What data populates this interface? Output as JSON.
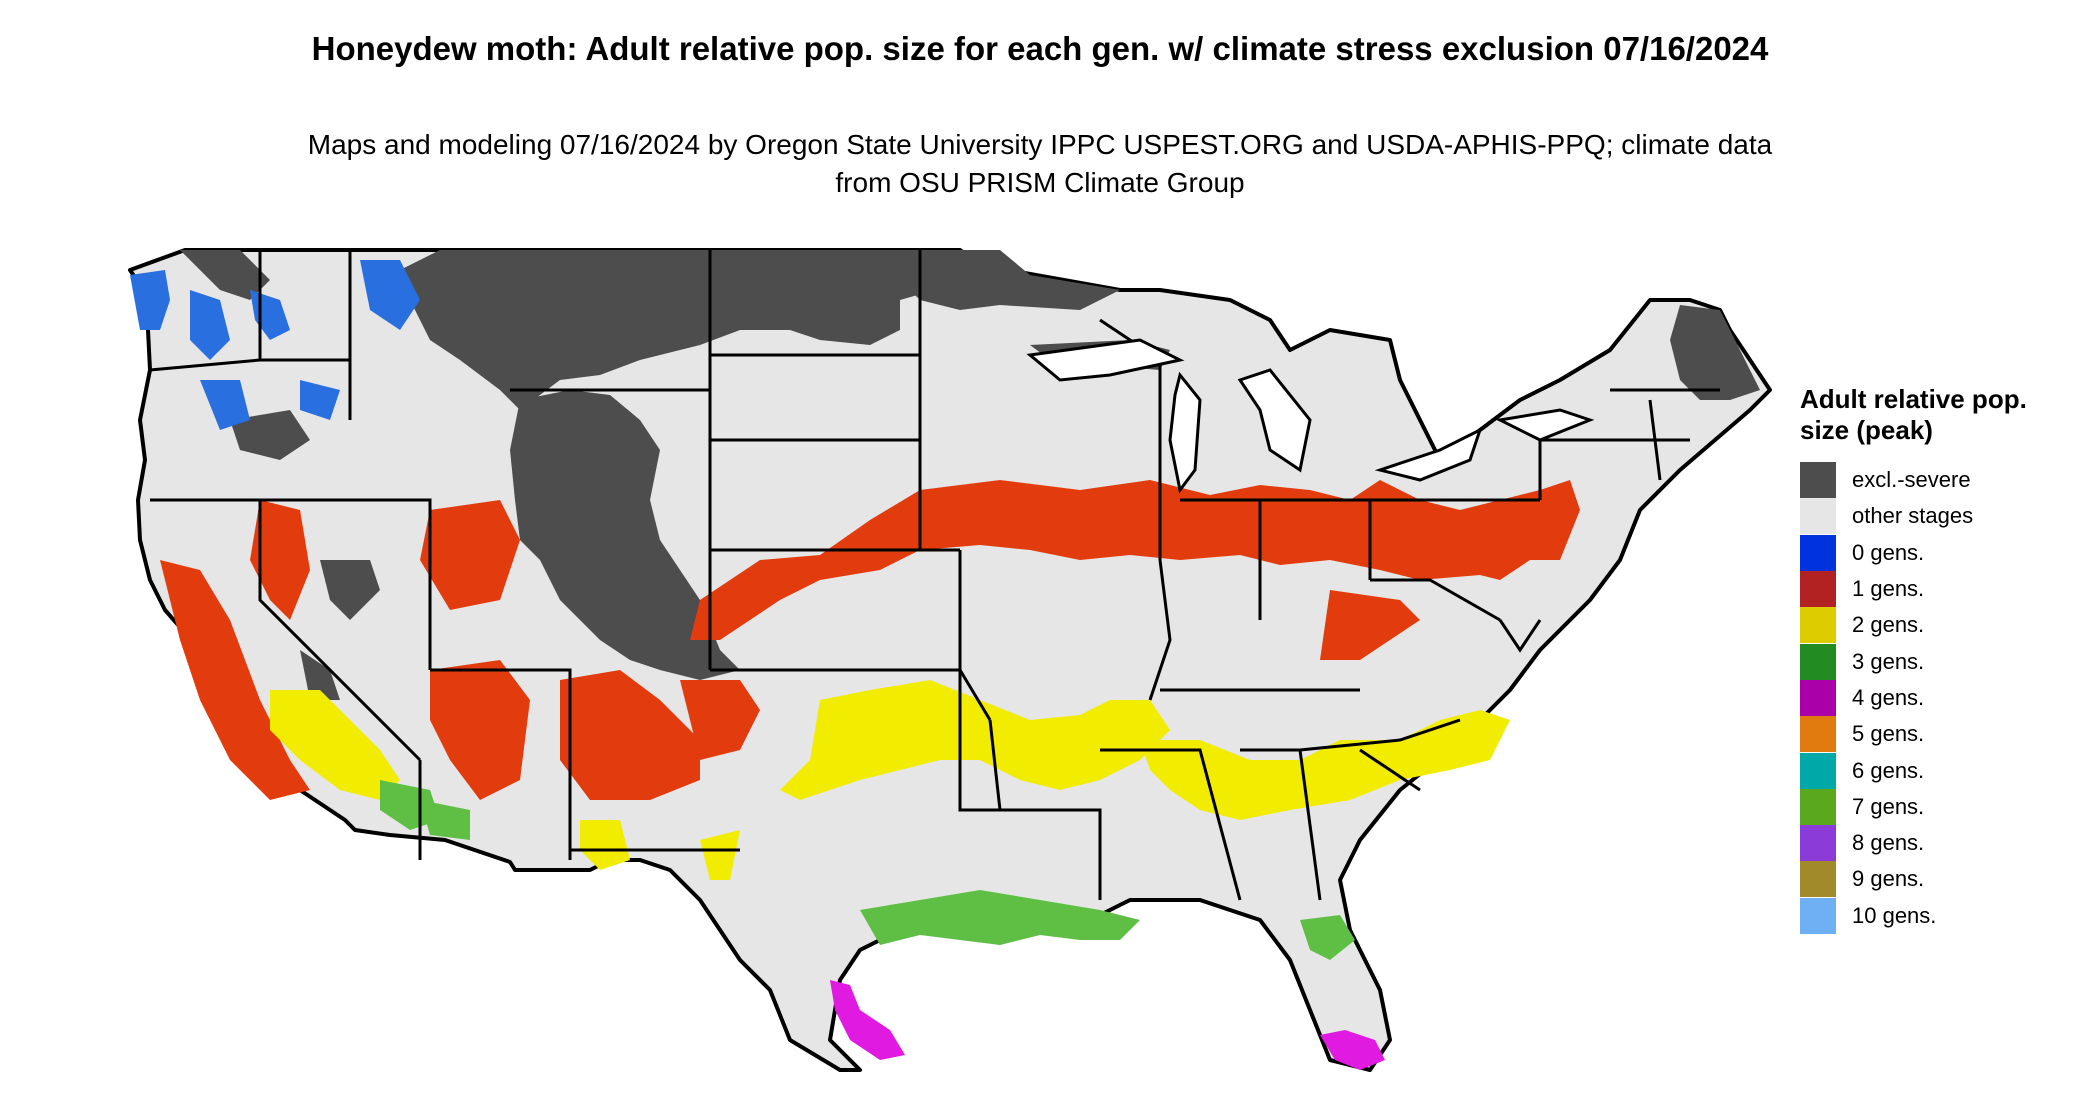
{
  "title": "Honeydew moth: Adult relative pop. size for each gen. w/ climate stress exclusion 07/16/2024",
  "subtitle": "Maps and modeling 07/16/2024 by Oregon State University IPPC USPEST.ORG and USDA-APHIS-PPQ; climate data from OSU PRISM Climate Group",
  "legend": {
    "title": "Adult relative pop. size (peak)",
    "items": [
      {
        "label": "excl.-severe",
        "color": "#4d4d4d"
      },
      {
        "label": "other stages",
        "color": "#e6e6e6"
      },
      {
        "label": "0 gens.",
        "color": "#0033dd"
      },
      {
        "label": "1 gens.",
        "color": "#b22222"
      },
      {
        "label": "2 gens.",
        "color": "#ddcc00"
      },
      {
        "label": "3 gens.",
        "color": "#228b22"
      },
      {
        "label": "4 gens.",
        "color": "#aa00aa"
      },
      {
        "label": "5 gens.",
        "color": "#e07b10"
      },
      {
        "label": "6 gens.",
        "color": "#00a8a8"
      },
      {
        "label": "7 gens.",
        "color": "#5aa81e"
      },
      {
        "label": "8 gens.",
        "color": "#8a3bd8"
      },
      {
        "label": "9 gens.",
        "color": "#a08a2a"
      },
      {
        "label": "10 gens.",
        "color": "#6fb0f5"
      }
    ]
  }
}
